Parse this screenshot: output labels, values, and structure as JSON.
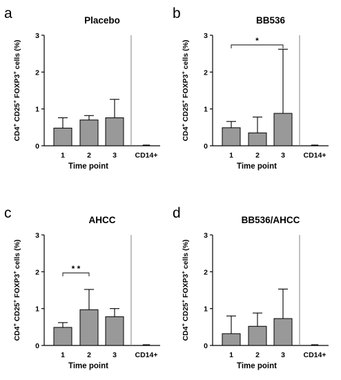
{
  "chart_data": [
    {
      "type": "bar",
      "panel_label": "a",
      "title": "Placebo",
      "categories": [
        "1",
        "2",
        "3",
        "CD14+"
      ],
      "values": [
        0.48,
        0.7,
        0.76,
        0.01
      ],
      "error_upper": [
        0.76,
        0.82,
        1.26,
        0.02
      ],
      "xlabel": "Time point",
      "ylabel": "CD4+ CD25+ FOXP3+ cells (%)",
      "ylim": [
        0,
        3
      ],
      "yticks": [
        "0",
        "1",
        "2",
        "3"
      ],
      "significance": null
    },
    {
      "type": "bar",
      "panel_label": "b",
      "title": "BB536",
      "categories": [
        "1",
        "2",
        "3",
        "CD14+"
      ],
      "values": [
        0.49,
        0.35,
        0.88,
        0.01
      ],
      "error_upper": [
        0.66,
        0.78,
        2.62,
        0.02
      ],
      "xlabel": "Time point",
      "ylabel": "CD4+ CD25+ FOXP3+ cells (%)",
      "ylim": [
        0,
        3
      ],
      "yticks": [
        "0",
        "1",
        "2",
        "3"
      ],
      "significance": {
        "from": 0,
        "to": 2,
        "label": "*"
      }
    },
    {
      "type": "bar",
      "panel_label": "c",
      "title": "AHCC",
      "categories": [
        "1",
        "2",
        "3",
        "CD14+"
      ],
      "values": [
        0.49,
        0.97,
        0.78,
        0.01
      ],
      "error_upper": [
        0.62,
        1.52,
        1.0,
        0.02
      ],
      "xlabel": "Time point",
      "ylabel": "CD4+ CD25+ FOXP3+ cells (%)",
      "ylim": [
        0,
        3
      ],
      "yticks": [
        "0",
        "1",
        "2",
        "3"
      ],
      "significance": {
        "from": 0,
        "to": 1,
        "label": "**"
      }
    },
    {
      "type": "bar",
      "panel_label": "d",
      "title": "BB536/AHCC",
      "categories": [
        "1",
        "2",
        "3",
        "CD14+"
      ],
      "values": [
        0.32,
        0.52,
        0.73,
        0.01
      ],
      "error_upper": [
        0.8,
        0.88,
        1.53,
        0.02
      ],
      "xlabel": "Time point",
      "ylabel": "CD4+ CD25+ FOXP3+ cells (%)",
      "ylim": [
        0,
        3
      ],
      "yticks": [
        "0",
        "1",
        "2",
        "3"
      ],
      "significance": null
    }
  ],
  "colors": {
    "bar_fill": "#999999",
    "bar_stroke": "#000000",
    "divider": "#808080"
  }
}
